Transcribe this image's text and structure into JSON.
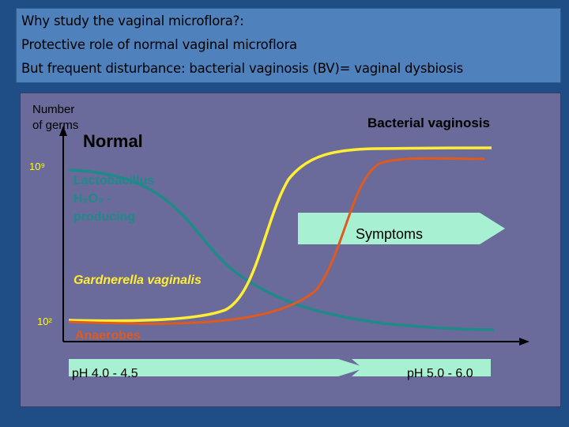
{
  "slide": {
    "title_lines": [
      "Why study the vaginal microflora?:",
      "Protective role of normal vaginal microflora",
      "But frequent disturbance: bacterial vaginosis (BV)= vaginal dysbiosis"
    ]
  },
  "figure": {
    "y_axis_label_lines": [
      "Number",
      "of germs"
    ],
    "tick_high": "10⁹",
    "tick_low": "10²",
    "normal_label": "Normal",
    "bv_label": "Bacterial vaginosis",
    "lactobacillus_lines": [
      "Lactobacillus",
      "H₂O₂ -",
      "producing"
    ],
    "symptoms_label": "Symptoms",
    "gardnerella_label": "Gardnerella vaginalis",
    "anaerobes_label": "Anaerobes",
    "ph_left": "pH 4.0 - 4.5",
    "ph_right": "pH 5.0 - 6.0",
    "colors": {
      "panel": "#6a6b9a",
      "lactobacillus": "#1f8a8a",
      "gardnerella": "#ffee33",
      "anaerobes": "#e05a1e",
      "band": "#a8f0d2"
    }
  }
}
